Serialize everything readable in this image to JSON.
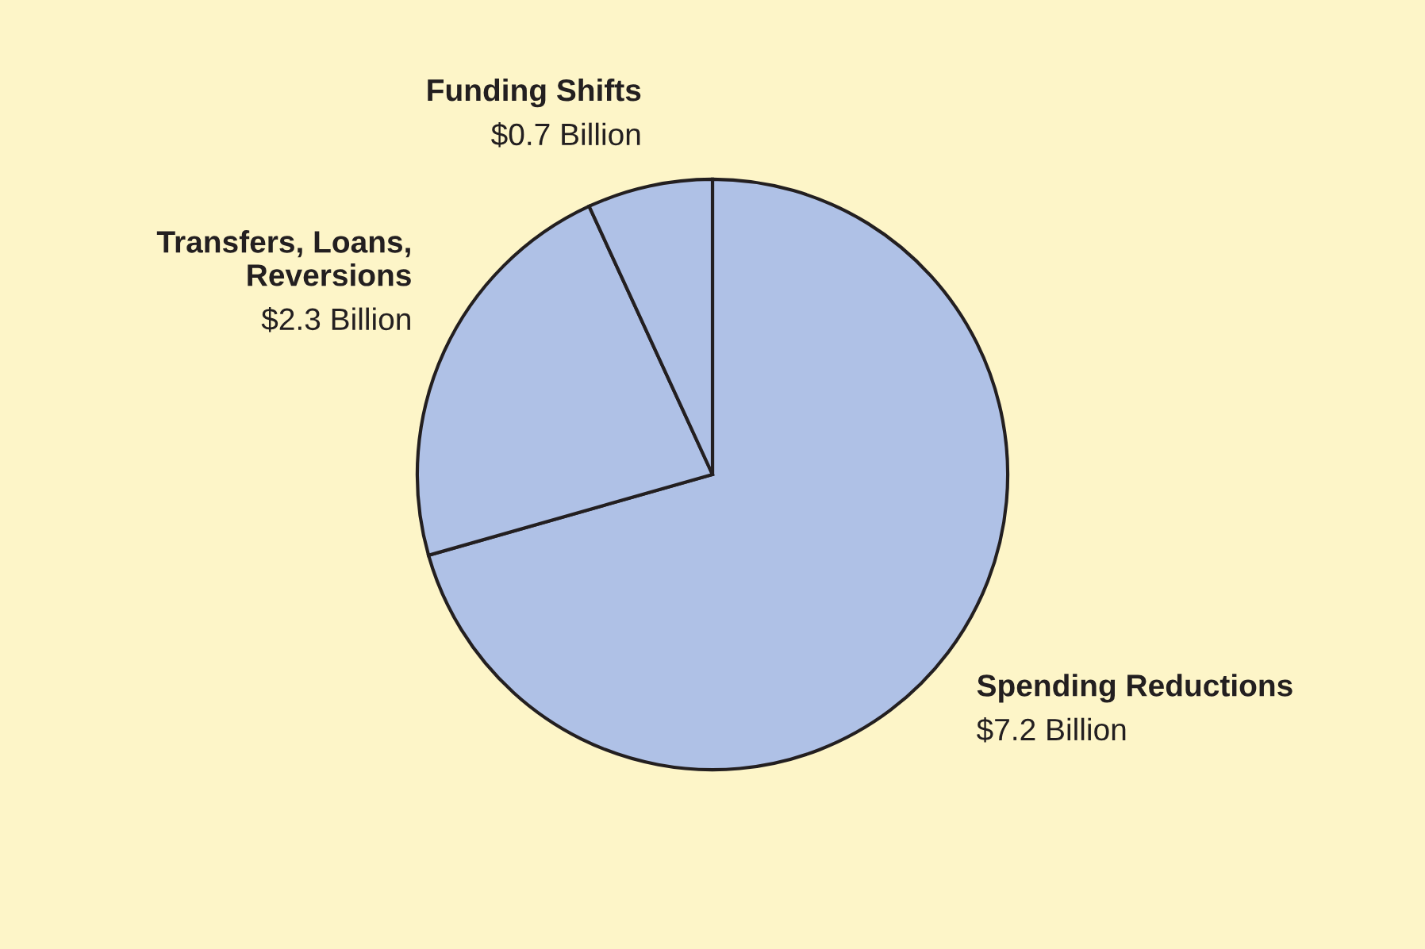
{
  "chart_data": {
    "type": "pie",
    "categories": [
      "Spending Reductions",
      "Transfers, Loans,\nReversions",
      "Funding Shifts"
    ],
    "values": [
      7.2,
      2.3,
      0.7
    ],
    "value_labels": [
      "$7.2 Billion",
      "$2.3 Billion",
      "$0.7 Billion"
    ],
    "colors": [
      "#afc1e6",
      "#afc1e6",
      "#afc1e6"
    ],
    "legend": false
  }
}
